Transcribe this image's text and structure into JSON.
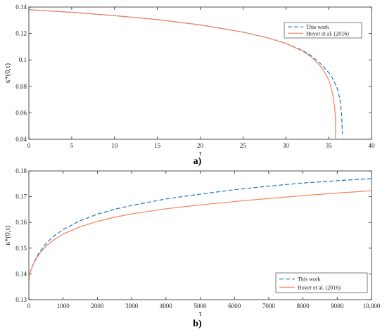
{
  "colors": {
    "this_work": "#1f77c4",
    "hoyer": "#f4845f",
    "axis": "#262626"
  },
  "chart_data": [
    {
      "type": "line",
      "panel_label": "a)",
      "xlabel": "τ",
      "ylabel": "κ*(0,τ)",
      "xlim": [
        0,
        40
      ],
      "ylim": [
        0.04,
        0.14
      ],
      "xticks": [
        0,
        5,
        10,
        15,
        20,
        25,
        30,
        35,
        40
      ],
      "xtick_labels": [
        "0",
        "5",
        "10",
        "15",
        "20",
        "25",
        "30",
        "35",
        "40"
      ],
      "yticks": [
        0.04,
        0.06,
        0.08,
        0.1,
        0.12,
        0.14
      ],
      "ytick_labels": [
        "0.04",
        "0.06",
        "0.08",
        "0.1",
        "0.12",
        "0.14"
      ],
      "legend_position": "top-right",
      "grid": false,
      "series": [
        {
          "name": "This work",
          "style": "dashed",
          "x": [
            0,
            5,
            10,
            15,
            20,
            25,
            28,
            30,
            32,
            33,
            34,
            35,
            35.5,
            36,
            36.3,
            36.5,
            36.6
          ],
          "y": [
            0.138,
            0.136,
            0.1335,
            0.1305,
            0.1265,
            0.121,
            0.1165,
            0.1125,
            0.107,
            0.103,
            0.0975,
            0.0905,
            0.0855,
            0.0785,
            0.071,
            0.06,
            0.044
          ]
        },
        {
          "name": "Hoyer et al. (2016)",
          "style": "solid",
          "x": [
            0,
            5,
            10,
            15,
            20,
            25,
            28,
            30,
            32,
            33,
            34,
            34.5,
            35,
            35.3,
            35.5,
            35.7,
            35.8,
            35.8
          ],
          "y": [
            0.138,
            0.136,
            0.1335,
            0.1305,
            0.1265,
            0.121,
            0.1165,
            0.1125,
            0.1065,
            0.102,
            0.0955,
            0.091,
            0.085,
            0.079,
            0.073,
            0.064,
            0.055,
            0.04
          ]
        }
      ]
    },
    {
      "type": "line",
      "panel_label": "b)",
      "xlabel": "τ",
      "ylabel": "κ*(0,τ)",
      "xlim": [
        0,
        10000
      ],
      "ylim": [
        0.13,
        0.18
      ],
      "xticks": [
        0,
        1000,
        2000,
        3000,
        4000,
        5000,
        6000,
        7000,
        8000,
        9000,
        10000
      ],
      "xtick_labels": [
        "0",
        "1000",
        "2000",
        "3000",
        "4000",
        "5000",
        "6000",
        "7000",
        "8000",
        "9000",
        "10,000"
      ],
      "yticks": [
        0.13,
        0.14,
        0.15,
        0.16,
        0.17,
        0.18
      ],
      "ytick_labels": [
        "0.13",
        "0.14",
        "0.15",
        "0.16",
        "0.17",
        "0.18"
      ],
      "legend_position": "bottom-right",
      "grid": false,
      "series": [
        {
          "name": "This work",
          "style": "dashed",
          "x": [
            0,
            50,
            150,
            300,
            500,
            750,
            1000,
            1500,
            2000,
            2500,
            3000,
            4000,
            5000,
            6000,
            7000,
            8000,
            9000,
            10000
          ],
          "y": [
            0.1375,
            0.1412,
            0.1445,
            0.1482,
            0.1518,
            0.1549,
            0.1572,
            0.1607,
            0.1632,
            0.1651,
            0.1666,
            0.1691,
            0.171,
            0.1727,
            0.1741,
            0.1753,
            0.1762,
            0.177
          ]
        },
        {
          "name": "Hoyer et al. (2016)",
          "style": "solid",
          "x": [
            0,
            50,
            150,
            300,
            500,
            750,
            1000,
            1500,
            2000,
            2500,
            3000,
            4000,
            5000,
            6000,
            7000,
            8000,
            9000,
            10000
          ],
          "y": [
            0.138,
            0.1412,
            0.1443,
            0.1476,
            0.1508,
            0.1534,
            0.1555,
            0.1583,
            0.1604,
            0.162,
            0.1633,
            0.1653,
            0.1668,
            0.1681,
            0.1693,
            0.1704,
            0.1714,
            0.1723
          ]
        }
      ]
    }
  ]
}
